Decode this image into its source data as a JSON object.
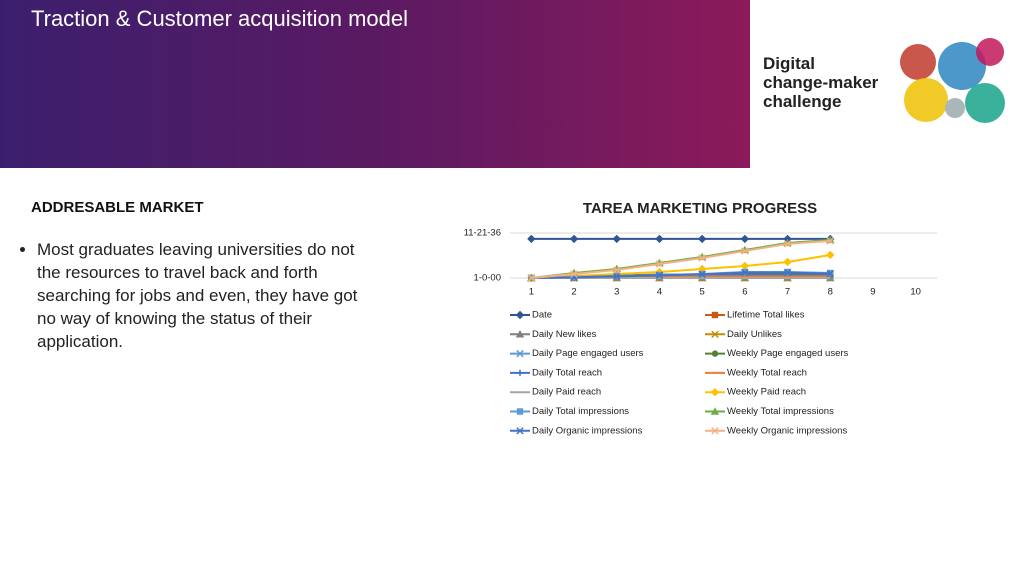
{
  "header": {
    "title": "Traction & Customer acquisition model"
  },
  "logo": {
    "lines": [
      "Digital",
      "change-maker",
      "challenge"
    ]
  },
  "left": {
    "heading": "ADDRESABLE MARKET",
    "bullets": [
      "Most graduates leaving universities do not the resources to travel back and forth searching for jobs and even, they have got no way of knowing the status of their application."
    ]
  },
  "chart_data": {
    "type": "line",
    "title": "TAREA MARKETING PROGRESS",
    "categories": [
      1,
      2,
      3,
      4,
      5,
      6,
      7,
      8,
      9,
      10
    ],
    "ylim": [
      0,
      13475
    ],
    "yticks": [
      {
        "value": 0,
        "label": "1-0-00"
      },
      {
        "value": 13475,
        "label": "11-21-36"
      }
    ],
    "grid": true,
    "series": [
      {
        "name": "Date",
        "color": "#2f5597",
        "marker": "diamond",
        "values": [
          11700,
          11700,
          11700,
          11700,
          11700,
          11700,
          11700,
          11700,
          null,
          null
        ]
      },
      {
        "name": "Lifetime Total likes",
        "color": "#c55a11",
        "marker": "square",
        "values": [
          0,
          100,
          150,
          200,
          200,
          250,
          250,
          300,
          null,
          null
        ]
      },
      {
        "name": "Daily New likes",
        "color": "#7f7f7f",
        "marker": "triangle",
        "values": [
          0,
          0,
          0,
          0,
          0,
          0,
          0,
          0,
          null,
          null
        ]
      },
      {
        "name": "Daily Unlikes",
        "color": "#bf9000",
        "marker": "x",
        "values": [
          0,
          0,
          0,
          0,
          0,
          0,
          0,
          0,
          null,
          null
        ]
      },
      {
        "name": "Daily Page engaged users",
        "color": "#5b9bd5",
        "marker": "x",
        "values": [
          0,
          300,
          600,
          500,
          400,
          500,
          400,
          300,
          null,
          null
        ]
      },
      {
        "name": "Weekly Page engaged users",
        "color": "#548235",
        "marker": "circle",
        "values": [
          0,
          400,
          800,
          1000,
          1100,
          1200,
          1100,
          1000,
          null,
          null
        ]
      },
      {
        "name": "Daily Total reach",
        "color": "#4472c4",
        "marker": "plus",
        "values": [
          0,
          300,
          500,
          600,
          700,
          900,
          800,
          700,
          null,
          null
        ]
      },
      {
        "name": "Weekly Total reach",
        "color": "#ed7d31",
        "marker": "none",
        "values": [
          0,
          200,
          300,
          400,
          500,
          500,
          500,
          500,
          null,
          null
        ]
      },
      {
        "name": "Daily Paid reach",
        "color": "#a5a5a5",
        "marker": "none",
        "values": [
          0,
          0,
          0,
          0,
          0,
          0,
          0,
          0,
          null,
          null
        ]
      },
      {
        "name": "Weekly Paid reach",
        "color": "#ffc000",
        "marker": "diamond",
        "values": [
          0,
          600,
          1200,
          1800,
          2700,
          3600,
          4800,
          6900,
          null,
          null
        ]
      },
      {
        "name": "Daily Total impressions",
        "color": "#5b9bd5",
        "marker": "square",
        "values": [
          0,
          300,
          600,
          900,
          1200,
          1800,
          1800,
          1500,
          null,
          null
        ]
      },
      {
        "name": "Weekly Total impressions",
        "color": "#70ad47",
        "marker": "triangle",
        "values": [
          0,
          1500,
          2700,
          4500,
          6300,
          8400,
          10500,
          11400,
          null,
          null
        ]
      },
      {
        "name": "Daily Organic impressions",
        "color": "#4472c4",
        "marker": "x",
        "values": [
          0,
          200,
          500,
          800,
          1100,
          1600,
          1600,
          1300,
          null,
          null
        ]
      },
      {
        "name": "Weekly Organic impressions",
        "color": "#f4b183",
        "marker": "x",
        "values": [
          0,
          1200,
          2400,
          4200,
          6000,
          8100,
          10200,
          11100,
          null,
          null
        ]
      }
    ]
  }
}
